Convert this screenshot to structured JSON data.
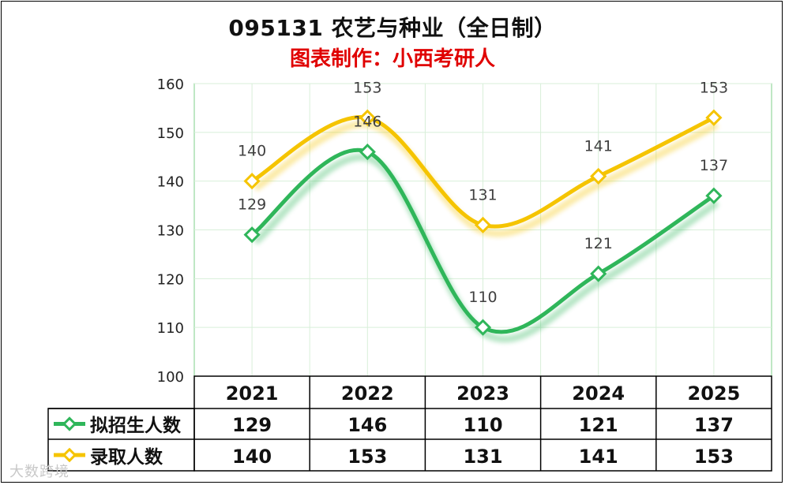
{
  "chart_data": {
    "type": "line",
    "title": "095131 农艺与种业（全日制）",
    "subtitle": "图表制作：小西考研人",
    "categories": [
      "2021",
      "2022",
      "2023",
      "2024",
      "2025"
    ],
    "ylim": [
      100,
      160
    ],
    "yticks": [
      "100",
      "110",
      "120",
      "130",
      "140",
      "150",
      "160"
    ],
    "grid": true,
    "series": [
      {
        "name": "拟招生人数",
        "color": "#2fb65a",
        "values": [
          129,
          146,
          110,
          121,
          137
        ]
      },
      {
        "name": "录取人数",
        "color": "#f5c400",
        "values": [
          140,
          153,
          131,
          141,
          153
        ]
      }
    ]
  },
  "watermark": "大数跨境"
}
